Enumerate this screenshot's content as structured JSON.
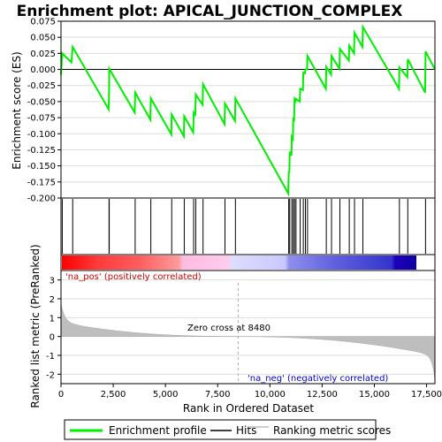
{
  "chart_data": {
    "type": "line",
    "title": "Enrichment plot: APICAL_JUNCTION_COMPLEX",
    "xlabel": "Rank in Ordered Dataset",
    "ylabel_top": "Enrichment score (ES)",
    "ylabel_bottom": "Ranked list metric (PreRanked)",
    "x_ticks": [
      0,
      2500,
      5000,
      7500,
      10000,
      12500,
      15000,
      17500
    ],
    "x_tick_labels": [
      "0",
      "2,500",
      "5,000",
      "7,500",
      "10,000",
      "12,500",
      "15,000",
      "17,500"
    ],
    "xlim": [
      0,
      17900
    ],
    "es_ylim": [
      -0.2,
      0.075
    ],
    "es_ticks": [
      0.075,
      0.05,
      0.025,
      0.0,
      -0.025,
      -0.05,
      -0.075,
      -0.1,
      -0.125,
      -0.15,
      -0.175,
      -0.2
    ],
    "es_tick_labels": [
      "0.075",
      "0.050",
      "0.025",
      "0.000",
      "-0.025",
      "-0.050",
      "-0.075",
      "-0.100",
      "-0.125",
      "-0.150",
      "-0.175",
      "-0.200"
    ],
    "metric_ylim": [
      -2.5,
      3.5
    ],
    "metric_ticks": [
      3,
      2,
      1,
      0,
      -1,
      -2
    ],
    "metric_tick_labels": [
      "3",
      "2",
      "1",
      "0",
      "-1",
      "-2"
    ],
    "hits": [
      60,
      560,
      2300,
      2310,
      3550,
      4300,
      5300,
      5900,
      6350,
      6450,
      6800,
      7850,
      8350,
      10900,
      10950,
      11050,
      11120,
      11180,
      11250,
      11450,
      11600,
      11700,
      11800,
      12700,
      12950,
      13350,
      13800,
      14050,
      14450,
      16200,
      16600,
      17450
    ],
    "enrichment_profile": {
      "x": [
        0,
        60,
        500,
        560,
        2280,
        2300,
        2310,
        3530,
        3550,
        4280,
        4300,
        5280,
        5300,
        5880,
        5900,
        6330,
        6350,
        6430,
        6450,
        6780,
        6800,
        7830,
        7850,
        8330,
        8350,
        10880,
        10900,
        10930,
        10950,
        11030,
        11050,
        11100,
        11120,
        11160,
        11180,
        11230,
        11250,
        11430,
        11450,
        11580,
        11600,
        11680,
        11700,
        11780,
        11800,
        12680,
        12700,
        12930,
        12950,
        13330,
        13350,
        13780,
        13800,
        14030,
        14050,
        14430,
        14450,
        16180,
        16200,
        16580,
        16600,
        17430,
        17450,
        17900
      ],
      "y": [
        -0.008,
        0.025,
        0.011,
        0.035,
        -0.062,
        -0.035,
        0.001,
        -0.067,
        -0.036,
        -0.078,
        -0.045,
        -0.101,
        -0.07,
        -0.104,
        -0.073,
        -0.098,
        -0.067,
        -0.07,
        -0.039,
        -0.055,
        -0.023,
        -0.085,
        -0.053,
        -0.08,
        -0.045,
        -0.193,
        -0.161,
        -0.16,
        -0.128,
        -0.134,
        -0.105,
        -0.108,
        -0.077,
        -0.078,
        -0.046,
        -0.049,
        -0.046,
        -0.05,
        -0.03,
        -0.032,
        -0.005,
        -0.006,
        0.0,
        0.0,
        0.021,
        -0.03,
        0.004,
        -0.008,
        0.021,
        0.001,
        0.032,
        0.014,
        0.037,
        0.025,
        0.057,
        0.035,
        0.066,
        -0.03,
        0.003,
        -0.012,
        0.016,
        -0.036,
        0.028,
        0.0
      ]
    },
    "zero_cross_label": "Zero cross at 8480",
    "zero_cross": 8480,
    "pos_label": "'na_pos' (positively correlated)",
    "neg_label": "'na_neg' (negatively correlated)",
    "legend": [
      "Enrichment profile",
      "Hits",
      "Ranking metric scores"
    ],
    "colors": {
      "profile": "#00ee00",
      "hits": "#000000",
      "metric": "#bebebe",
      "pos_text": "#cc0000",
      "neg_text": "#0000cc"
    }
  }
}
